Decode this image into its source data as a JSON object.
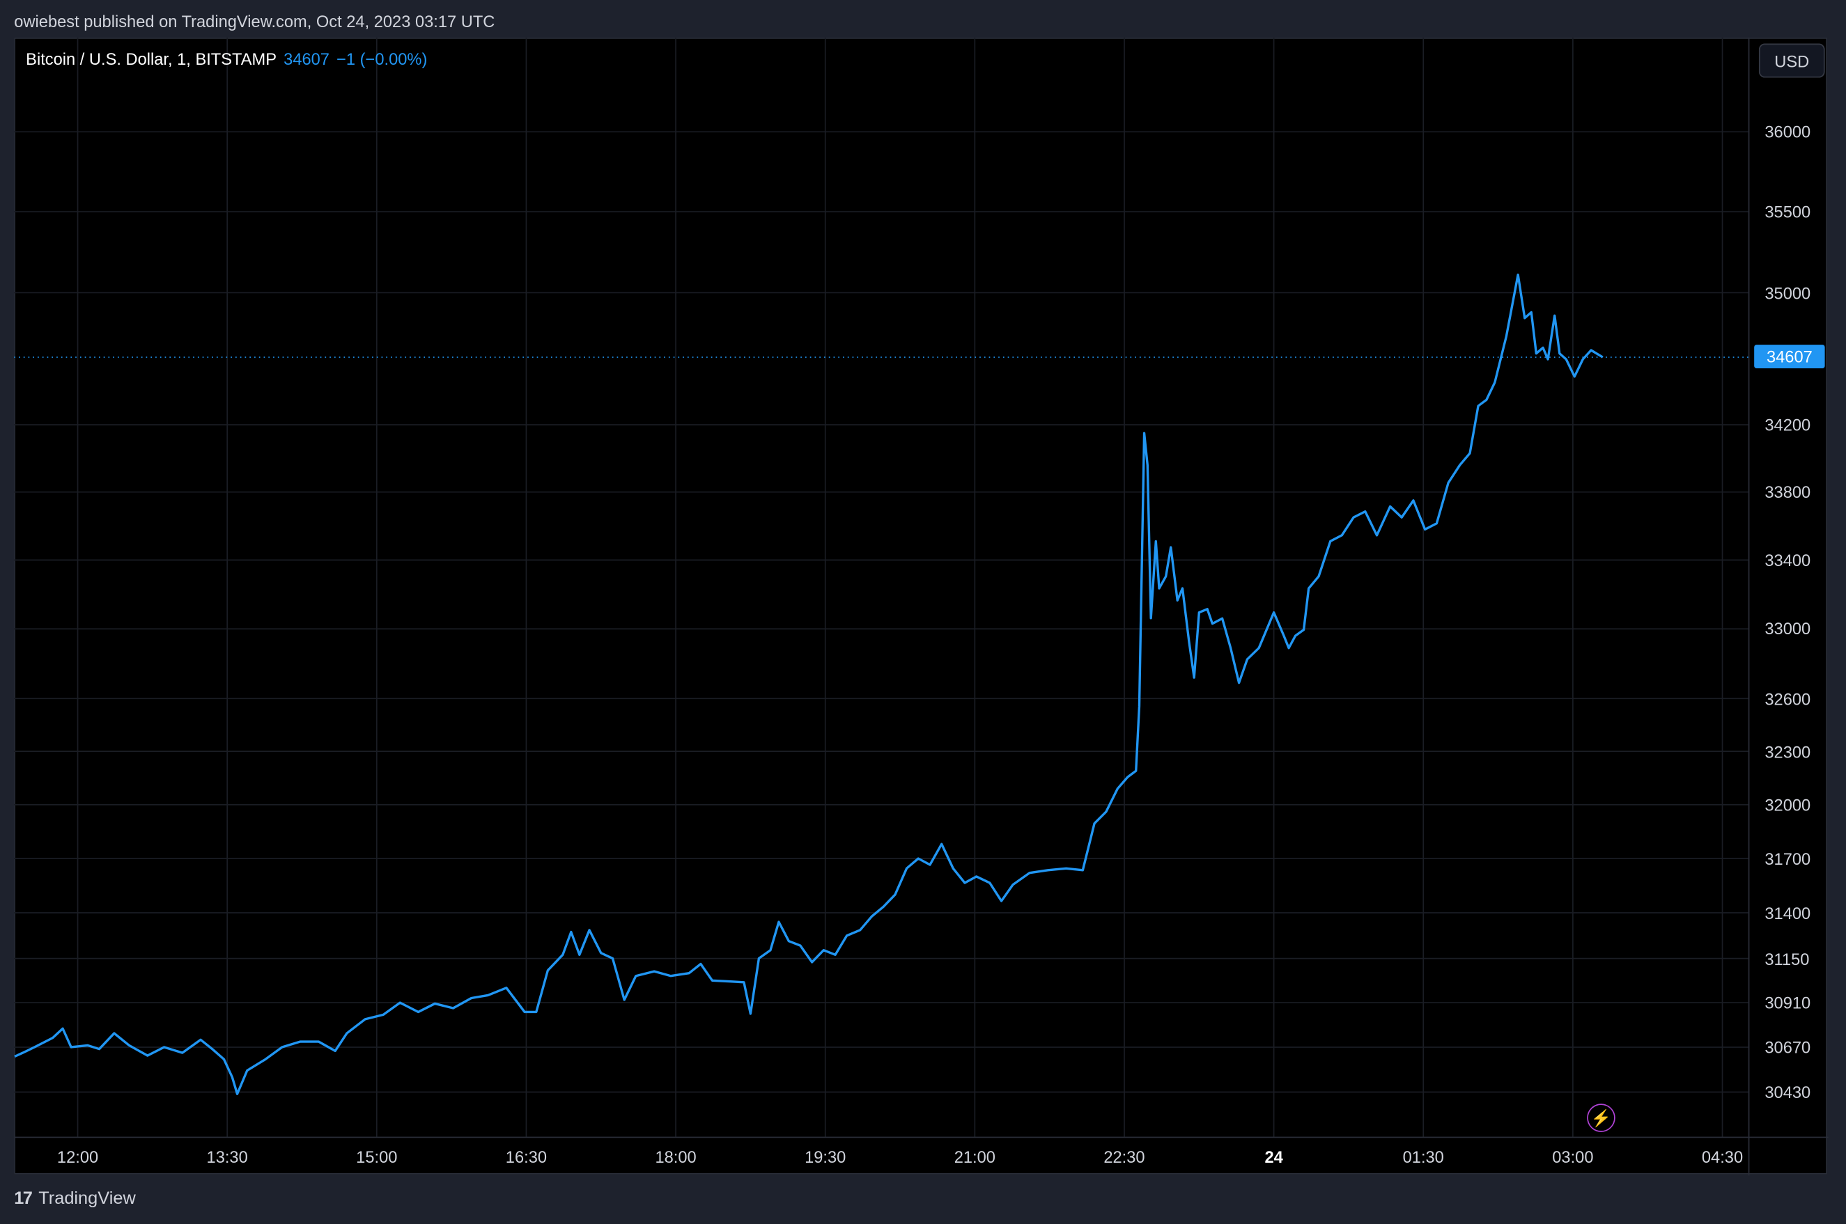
{
  "header": {
    "published_text": "owiebest published on TradingView.com, Oct 24, 2023 03:17 UTC"
  },
  "legend": {
    "symbol": "Bitcoin / U.S. Dollar, 1, BITSTAMP",
    "last": "34607",
    "change": "−1 (−0.00%)"
  },
  "price_axis": {
    "currency_button": "USD",
    "last_price_label": "34607"
  },
  "footer": {
    "brand": "TradingView",
    "logo_mark": "17"
  },
  "icons": {
    "alert": "lightning-bolt-icon"
  },
  "colors": {
    "line": "#2196f3",
    "background": "#000000",
    "grid": "#1a1d24",
    "accent_purple": "#b042d6"
  },
  "chart_data": {
    "type": "line",
    "title": "Bitcoin / U.S. Dollar, 1, BITSTAMP",
    "y_scale": "log",
    "grid": true,
    "ylim": [
      30250,
      36400
    ],
    "y_ticks": [
      36000,
      35500,
      35000,
      34200,
      33800,
      33400,
      33000,
      32600,
      32300,
      32000,
      31700,
      31400,
      31150,
      30910,
      30670,
      30430
    ],
    "x_ticks": [
      "12:00",
      "13:30",
      "15:00",
      "16:30",
      "18:00",
      "19:30",
      "21:00",
      "22:30",
      "24",
      "01:30",
      "03:00",
      "04:30"
    ],
    "last_price": 34607,
    "series": [
      {
        "points": [
          [
            "11:22",
            30620
          ],
          [
            "11:27",
            30640
          ],
          [
            "11:34",
            30670
          ],
          [
            "11:45",
            30720
          ],
          [
            "11:51",
            30770
          ],
          [
            "11:56",
            30670
          ],
          [
            "12:06",
            30680
          ],
          [
            "12:13",
            30660
          ],
          [
            "12:22",
            30745
          ],
          [
            "12:31",
            30680
          ],
          [
            "12:42",
            30625
          ],
          [
            "12:52",
            30670
          ],
          [
            "13:03",
            30640
          ],
          [
            "13:14",
            30710
          ],
          [
            "13:21",
            30660
          ],
          [
            "13:28",
            30605
          ],
          [
            "13:33",
            30510
          ],
          [
            "13:36",
            30420
          ],
          [
            "13:42",
            30545
          ],
          [
            "13:53",
            30605
          ],
          [
            "14:03",
            30670
          ],
          [
            "14:14",
            30700
          ],
          [
            "14:25",
            30700
          ],
          [
            "14:35",
            30650
          ],
          [
            "14:42",
            30745
          ],
          [
            "14:53",
            30820
          ],
          [
            "15:04",
            30845
          ],
          [
            "15:14",
            30910
          ],
          [
            "15:25",
            30860
          ],
          [
            "15:35",
            30905
          ],
          [
            "15:46",
            30880
          ],
          [
            "15:57",
            30935
          ],
          [
            "16:07",
            30950
          ],
          [
            "16:18",
            30990
          ],
          [
            "16:29",
            30860
          ],
          [
            "16:36",
            30860
          ],
          [
            "16:43",
            31085
          ],
          [
            "16:52",
            31170
          ],
          [
            "16:57",
            31295
          ],
          [
            "17:02",
            31170
          ],
          [
            "17:08",
            31305
          ],
          [
            "17:15",
            31180
          ],
          [
            "17:22",
            31150
          ],
          [
            "17:29",
            30925
          ],
          [
            "17:36",
            31055
          ],
          [
            "17:47",
            31080
          ],
          [
            "17:57",
            31055
          ],
          [
            "18:08",
            31070
          ],
          [
            "18:15",
            31120
          ],
          [
            "18:22",
            31030
          ],
          [
            "18:33",
            31025
          ],
          [
            "18:41",
            31020
          ],
          [
            "18:45",
            30850
          ],
          [
            "18:50",
            31150
          ],
          [
            "18:57",
            31195
          ],
          [
            "19:02",
            31350
          ],
          [
            "19:08",
            31245
          ],
          [
            "19:15",
            31220
          ],
          [
            "19:22",
            31130
          ],
          [
            "19:29",
            31195
          ],
          [
            "19:36",
            31170
          ],
          [
            "19:43",
            31275
          ],
          [
            "19:51",
            31305
          ],
          [
            "19:58",
            31380
          ],
          [
            "20:05",
            31433
          ],
          [
            "20:12",
            31500
          ],
          [
            "20:19",
            31645
          ],
          [
            "20:26",
            31700
          ],
          [
            "20:33",
            31665
          ],
          [
            "20:40",
            31780
          ],
          [
            "20:47",
            31645
          ],
          [
            "20:54",
            31565
          ],
          [
            "21:01",
            31600
          ],
          [
            "21:09",
            31565
          ],
          [
            "21:16",
            31465
          ],
          [
            "21:23",
            31555
          ],
          [
            "21:33",
            31620
          ],
          [
            "21:44",
            31635
          ],
          [
            "21:55",
            31645
          ],
          [
            "22:05",
            31635
          ],
          [
            "22:12",
            31895
          ],
          [
            "22:19",
            31960
          ],
          [
            "22:26",
            32090
          ],
          [
            "22:32",
            32155
          ],
          [
            "22:37",
            32190
          ],
          [
            "22:39",
            32555
          ],
          [
            "22:42",
            34150
          ],
          [
            "22:44",
            33960
          ],
          [
            "22:46",
            33062
          ],
          [
            "22:49",
            33510
          ],
          [
            "22:51",
            33235
          ],
          [
            "22:55",
            33305
          ],
          [
            "22:58",
            33475
          ],
          [
            "23:02",
            33165
          ],
          [
            "23:05",
            33235
          ],
          [
            "23:09",
            32925
          ],
          [
            "23:12",
            32720
          ],
          [
            "23:15",
            33095
          ],
          [
            "23:20",
            33115
          ],
          [
            "23:23",
            33030
          ],
          [
            "23:29",
            33060
          ],
          [
            "23:34",
            32890
          ],
          [
            "23:39",
            32690
          ],
          [
            "23:44",
            32825
          ],
          [
            "23:51",
            32890
          ],
          [
            "00:00",
            33095
          ],
          [
            "00:06",
            32960
          ],
          [
            "00:09",
            32890
          ],
          [
            "00:13",
            32960
          ],
          [
            "00:18",
            32995
          ],
          [
            "00:21",
            33235
          ],
          [
            "00:27",
            33305
          ],
          [
            "00:34",
            33510
          ],
          [
            "00:41",
            33545
          ],
          [
            "00:48",
            33650
          ],
          [
            "00:55",
            33685
          ],
          [
            "01:02",
            33545
          ],
          [
            "01:10",
            33715
          ],
          [
            "01:17",
            33650
          ],
          [
            "01:24",
            33750
          ],
          [
            "01:31",
            33580
          ],
          [
            "01:38",
            33615
          ],
          [
            "01:45",
            33855
          ],
          [
            "01:52",
            33960
          ],
          [
            "01:58",
            34030
          ],
          [
            "02:03",
            34313
          ],
          [
            "02:08",
            34350
          ],
          [
            "02:13",
            34455
          ],
          [
            "02:20",
            34735
          ],
          [
            "02:27",
            35110
          ],
          [
            "02:31",
            34845
          ],
          [
            "02:35",
            34880
          ],
          [
            "02:38",
            34630
          ],
          [
            "02:42",
            34665
          ],
          [
            "02:45",
            34595
          ],
          [
            "02:49",
            34860
          ],
          [
            "02:52",
            34630
          ],
          [
            "02:56",
            34595
          ],
          [
            "03:01",
            34490
          ],
          [
            "03:06",
            34595
          ],
          [
            "03:11",
            34650
          ],
          [
            "03:18",
            34607
          ]
        ]
      }
    ]
  }
}
